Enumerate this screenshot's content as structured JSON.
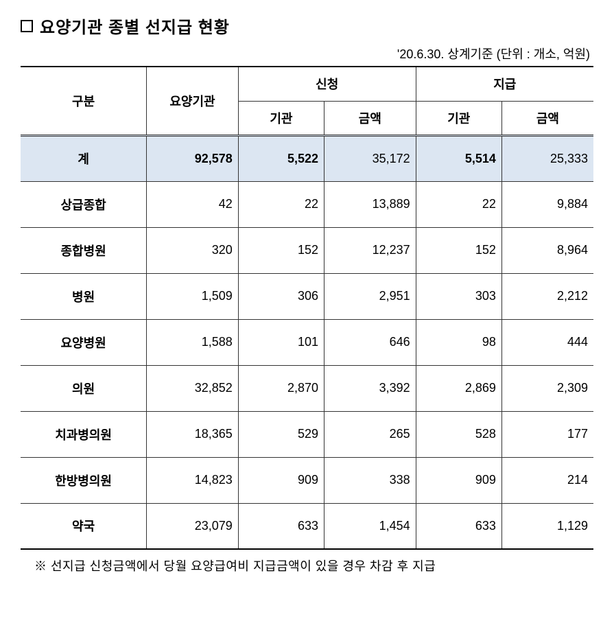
{
  "title": "요양기관 종별 선지급 현황",
  "subtitle": "'20.6.30. 상계기준 (단위 : 개소, 억원)",
  "headers": {
    "division": "구분",
    "institution": "요양기관",
    "application": "신청",
    "payment": "지급",
    "sub_institution": "기관",
    "sub_amount": "금액"
  },
  "sum_row": {
    "label": "계",
    "values": [
      "92,578",
      "5,522",
      "35,172",
      "5,514",
      "25,333"
    ]
  },
  "rows": [
    {
      "label": "상급종합",
      "values": [
        "42",
        "22",
        "13,889",
        "22",
        "9,884"
      ]
    },
    {
      "label": "종합병원",
      "values": [
        "320",
        "152",
        "12,237",
        "152",
        "8,964"
      ]
    },
    {
      "label": "병원",
      "values": [
        "1,509",
        "306",
        "2,951",
        "303",
        "2,212"
      ]
    },
    {
      "label": "요양병원",
      "values": [
        "1,588",
        "101",
        "646",
        "98",
        "444"
      ]
    },
    {
      "label": "의원",
      "values": [
        "32,852",
        "2,870",
        "3,392",
        "2,869",
        "2,309"
      ]
    },
    {
      "label": "치과병의원",
      "values": [
        "18,365",
        "529",
        "265",
        "528",
        "177"
      ]
    },
    {
      "label": "한방병의원",
      "values": [
        "14,823",
        "909",
        "338",
        "909",
        "214"
      ]
    },
    {
      "label": "약국",
      "values": [
        "23,079",
        "633",
        "1,454",
        "633",
        "1,129"
      ]
    }
  ],
  "footnote": "※ 선지급 신청금액에서 당월 요양급여비 지급금액이 있을 경우 차감 후 지급",
  "colors": {
    "sum_row_bg": "#dce6f2",
    "border": "#333333",
    "background": "#ffffff"
  }
}
